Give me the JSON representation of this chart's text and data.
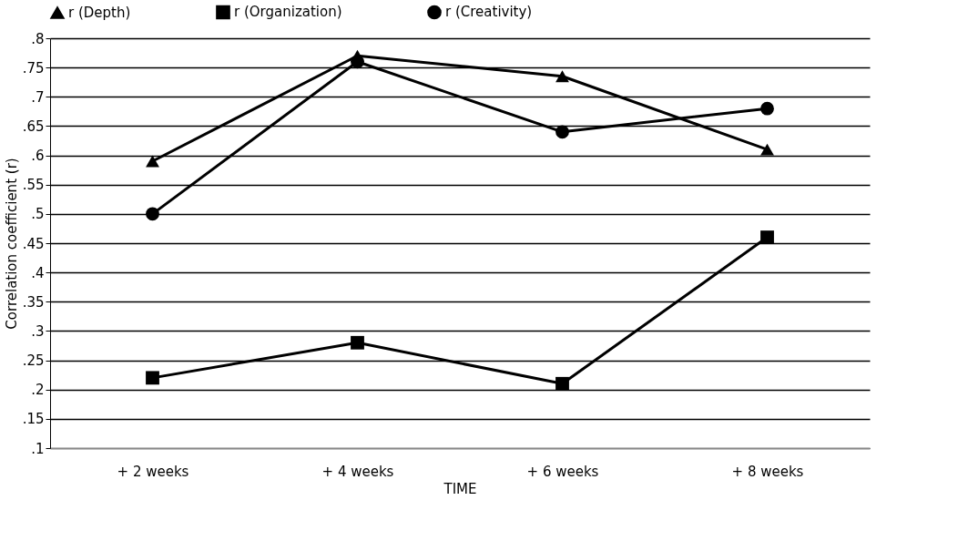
{
  "chart_data": {
    "type": "line",
    "xlabel": "TIME",
    "ylabel": "Correlation coefficient (r)",
    "categories": [
      "+ 2 weeks",
      "+ 4 weeks",
      "+ 6 weeks",
      "+ 8 weeks"
    ],
    "series": [
      {
        "name": "r (Depth)",
        "color": "#000000",
        "marker": "triangle",
        "values": [
          0.59,
          0.77,
          0.735,
          0.61
        ]
      },
      {
        "name": "r (Organization)",
        "color": "#000000",
        "marker": "square",
        "values": [
          0.22,
          0.28,
          0.21,
          0.46
        ]
      },
      {
        "name": "r (Creativity)",
        "color": "#000000",
        "marker": "circle",
        "values": [
          0.5,
          0.76,
          0.64,
          0.68
        ]
      }
    ],
    "ylim": [
      0.1,
      0.8
    ],
    "yticks": [
      {
        "value": 0.1,
        "label": ".1"
      },
      {
        "value": 0.15,
        "label": ".15"
      },
      {
        "value": 0.2,
        "label": ".2"
      },
      {
        "value": 0.25,
        "label": ".25"
      },
      {
        "value": 0.3,
        "label": ".3"
      },
      {
        "value": 0.35,
        "label": ".35"
      },
      {
        "value": 0.4,
        "label": ".4"
      },
      {
        "value": 0.45,
        "label": ".45"
      },
      {
        "value": 0.5,
        "label": ".5"
      },
      {
        "value": 0.55,
        "label": ".55"
      },
      {
        "value": 0.6,
        "label": ".6"
      },
      {
        "value": 0.65,
        "label": ".65"
      },
      {
        "value": 0.7,
        "label": ".7"
      },
      {
        "value": 0.75,
        "label": ".75"
      },
      {
        "value": 0.8,
        "label": ".8"
      }
    ],
    "grid": "y",
    "legend": "top",
    "line_style": "solid"
  }
}
